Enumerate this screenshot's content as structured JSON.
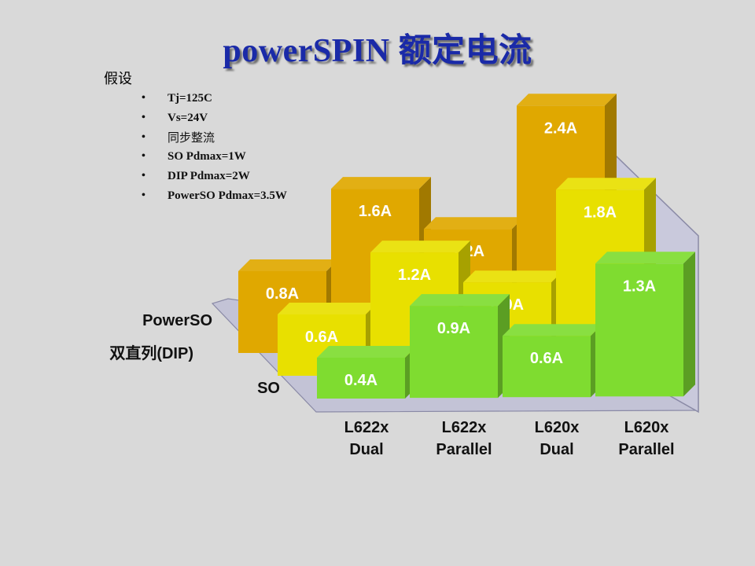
{
  "title": "powerSPIN 额定电流",
  "assumptions": {
    "heading": "假设",
    "items": [
      "Tj=125C",
      "Vs=24V",
      "同步整流",
      "SO Pdmax=1W",
      "DIP Pdmax=2W",
      "PowerSO Pdmax=3.5W"
    ]
  },
  "chart_data": {
    "type": "bar",
    "categories": [
      [
        "L622x",
        "Dual"
      ],
      [
        "L622x",
        "Parallel"
      ],
      [
        "L620x",
        "Dual"
      ],
      [
        "L620x",
        "Parallel"
      ]
    ],
    "series": [
      {
        "name": "PowerSO",
        "values": [
          0.8,
          1.6,
          1.2,
          2.4
        ],
        "labels": [
          "0.8A",
          "1.6A",
          "1.2A",
          "2.4A"
        ],
        "color": "#e0a800"
      },
      {
        "name": "双直列(DIP)",
        "values": [
          0.6,
          1.2,
          0.9,
          1.8
        ],
        "labels": [
          "0.6A",
          "1.2A",
          "0.9A",
          "1.8A"
        ],
        "color": "#e8e000"
      },
      {
        "name": "SO",
        "values": [
          0.4,
          0.9,
          0.6,
          1.3
        ],
        "labels": [
          "0.4A",
          "0.9A",
          "0.6A",
          "1.3A"
        ],
        "color": "#7fdc30"
      }
    ],
    "colors": {
      "wall": "#c9c9dc",
      "floor": "#c3c3d6",
      "wall_edge": "#8a8aa6"
    }
  }
}
